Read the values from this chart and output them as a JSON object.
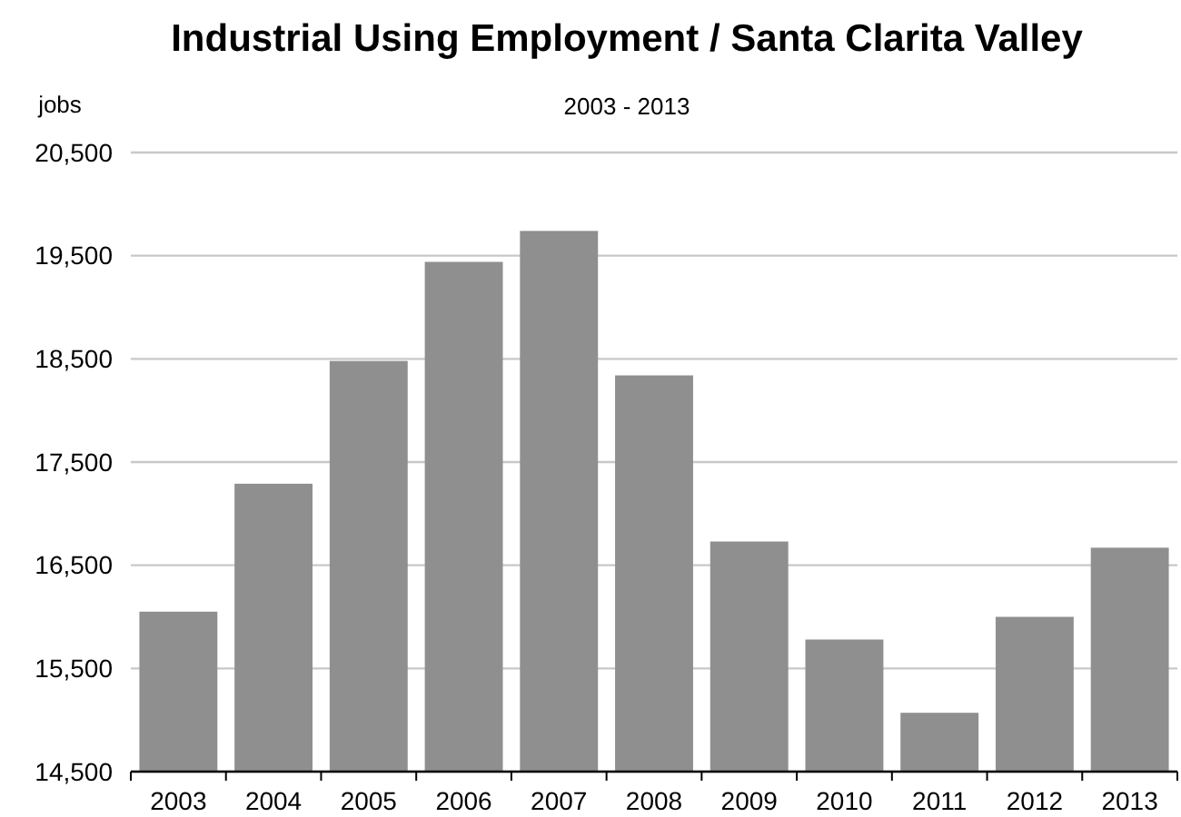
{
  "chart_data": {
    "type": "bar",
    "title": "Industrial Using Employment / Santa Clarita Valley",
    "subtitle": "2003 - 2013",
    "ylabel": "jobs",
    "categories": [
      "2003",
      "2004",
      "2005",
      "2006",
      "2007",
      "2008",
      "2009",
      "2010",
      "2011",
      "2012",
      "2013"
    ],
    "values": [
      16050,
      17290,
      18480,
      19440,
      19740,
      18340,
      16730,
      15780,
      15070,
      16000,
      16670
    ],
    "color": "#8f8f8f",
    "ylim": [
      14500,
      20500
    ],
    "yticks": [
      {
        "value": 14500,
        "label": "14,500"
      },
      {
        "value": 15500,
        "label": "15,500"
      },
      {
        "value": 16500,
        "label": "16,500"
      },
      {
        "value": 17500,
        "label": "17,500"
      },
      {
        "value": 18500,
        "label": "18,500"
      },
      {
        "value": 19500,
        "label": "19,500"
      },
      {
        "value": 20500,
        "label": "20,500"
      }
    ],
    "grid": "y"
  }
}
